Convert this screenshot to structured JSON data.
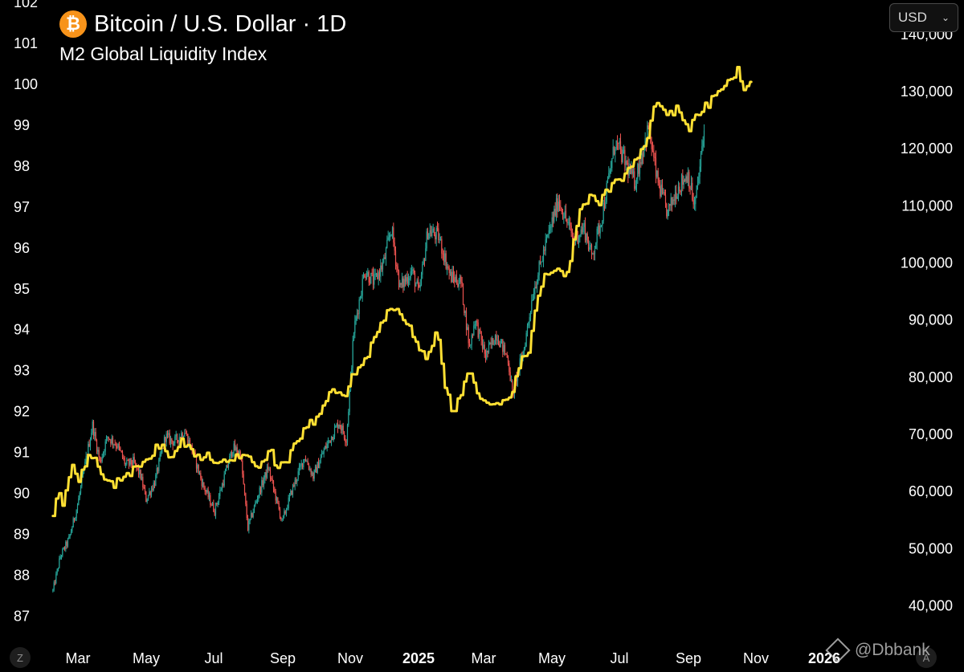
{
  "header": {
    "symbol_icon": "bitcoin-icon",
    "symbol_glyph": "₿",
    "title": "Bitcoin / U.S. Dollar · 1D",
    "subtitle": "M2 Global Liquidity Index"
  },
  "currency_select": {
    "value": "USD",
    "icon": "chevron-down-icon"
  },
  "watermark": {
    "handle": "@Dbbank",
    "icon": "binance-square-icon"
  },
  "badges": {
    "left": "Z",
    "right": "A"
  },
  "colors": {
    "background": "#000000",
    "m2_line": "#ffe033",
    "candle_up": "#26a69a",
    "candle_down": "#ef5350",
    "axis_text": "#ffffff",
    "bitcoin_orange": "#f7931a"
  },
  "chart_data": {
    "type": "line",
    "title": "Bitcoin / U.S. Dollar · 1D",
    "subtitle": "M2 Global Liquidity Index",
    "x_ticks": [
      "Mar",
      "May",
      "Jul",
      "Sep",
      "Nov",
      "2025",
      "Mar",
      "May",
      "Jul",
      "Sep",
      "Nov",
      "2026"
    ],
    "left_axis": {
      "ticks": [
        "102",
        "101",
        "100",
        "99",
        "98",
        "97",
        "96",
        "95",
        "94",
        "93",
        "92",
        "91",
        "90",
        "89",
        "88",
        "87"
      ],
      "ylim": [
        86.5,
        102
      ]
    },
    "right_axis": {
      "ticks": [
        "140,000",
        "130,000",
        "120,000",
        "110,000",
        "100,000",
        "90,000",
        "80,000",
        "70,000",
        "60,000",
        "50,000",
        "40,000"
      ],
      "ylim": [
        36000,
        147000
      ]
    },
    "x_range": [
      "2024-02-01",
      "2026-02-05"
    ],
    "grid": false,
    "legend": "top-left",
    "series": [
      {
        "name": "M2 Global Liquidity Index",
        "axis": "left",
        "kind": "line",
        "points": [
          [
            "2024-02-05",
            89.5
          ],
          [
            "2024-02-10",
            90.1
          ],
          [
            "2024-02-15",
            89.7
          ],
          [
            "2024-02-22",
            90.8
          ],
          [
            "2024-03-01",
            90.3
          ],
          [
            "2024-03-10",
            91.0
          ],
          [
            "2024-03-20",
            90.5
          ],
          [
            "2024-04-01",
            90.2
          ],
          [
            "2024-04-15",
            90.4
          ],
          [
            "2024-04-25",
            90.7
          ],
          [
            "2024-05-05",
            90.9
          ],
          [
            "2024-05-15",
            91.2
          ],
          [
            "2024-05-25",
            90.8
          ],
          [
            "2024-06-05",
            91.3
          ],
          [
            "2024-06-15",
            90.9
          ],
          [
            "2024-06-25",
            90.9
          ],
          [
            "2024-07-05",
            90.8
          ],
          [
            "2024-07-15",
            90.7
          ],
          [
            "2024-07-25",
            90.9
          ],
          [
            "2024-08-05",
            91.0
          ],
          [
            "2024-08-15",
            90.6
          ],
          [
            "2024-08-25",
            91.1
          ],
          [
            "2024-09-01",
            90.6
          ],
          [
            "2024-09-10",
            90.7
          ],
          [
            "2024-09-20",
            91.3
          ],
          [
            "2024-10-01",
            91.7
          ],
          [
            "2024-10-10",
            91.8
          ],
          [
            "2024-10-20",
            92.5
          ],
          [
            "2024-11-01",
            92.3
          ],
          [
            "2024-11-10",
            92.8
          ],
          [
            "2024-11-20",
            93.2
          ],
          [
            "2024-12-01",
            93.7
          ],
          [
            "2024-12-10",
            94.3
          ],
          [
            "2024-12-20",
            94.6
          ],
          [
            "2025-01-01",
            94.1
          ],
          [
            "2025-01-10",
            93.6
          ],
          [
            "2025-01-20",
            93.3
          ],
          [
            "2025-01-28",
            94.0
          ],
          [
            "2025-02-05",
            92.6
          ],
          [
            "2025-02-12",
            92.0
          ],
          [
            "2025-02-20",
            92.4
          ],
          [
            "2025-02-28",
            93.1
          ],
          [
            "2025-03-08",
            92.3
          ],
          [
            "2025-03-15",
            92.1
          ],
          [
            "2025-03-25",
            92.1
          ],
          [
            "2025-04-05",
            92.2
          ],
          [
            "2025-04-15",
            93.1
          ],
          [
            "2025-04-25",
            93.5
          ],
          [
            "2025-05-01",
            94.6
          ],
          [
            "2025-05-10",
            95.4
          ],
          [
            "2025-05-20",
            95.5
          ],
          [
            "2025-05-30",
            95.3
          ],
          [
            "2025-06-10",
            96.8
          ],
          [
            "2025-06-20",
            97.2
          ],
          [
            "2025-06-30",
            97.1
          ],
          [
            "2025-07-10",
            97.5
          ],
          [
            "2025-07-20",
            97.7
          ],
          [
            "2025-07-30",
            98.1
          ],
          [
            "2025-08-10",
            98.4
          ],
          [
            "2025-08-20",
            99.6
          ],
          [
            "2025-08-30",
            99.2
          ],
          [
            "2025-09-10",
            99.4
          ],
          [
            "2025-09-20",
            98.8
          ],
          [
            "2025-09-30",
            99.3
          ],
          [
            "2025-10-10",
            99.5
          ],
          [
            "2025-10-20",
            99.9
          ],
          [
            "2025-10-30",
            100.1
          ],
          [
            "2025-11-05",
            100.3
          ],
          [
            "2025-11-12",
            99.8
          ],
          [
            "2025-11-18",
            100.0
          ]
        ]
      },
      {
        "name": "Bitcoin / U.S. Dollar",
        "axis": "right",
        "kind": "candlestick",
        "points": [
          [
            "2024-02-05",
            42500
          ],
          [
            "2024-02-12",
            48500
          ],
          [
            "2024-02-20",
            51500
          ],
          [
            "2024-02-28",
            57500
          ],
          [
            "2024-03-05",
            63500
          ],
          [
            "2024-03-13",
            71500
          ],
          [
            "2024-03-20",
            65000
          ],
          [
            "2024-03-27",
            69500
          ],
          [
            "2024-04-05",
            68000
          ],
          [
            "2024-04-13",
            64500
          ],
          [
            "2024-04-20",
            65000
          ],
          [
            "2024-04-27",
            62500
          ],
          [
            "2024-05-02",
            58500
          ],
          [
            "2024-05-10",
            61500
          ],
          [
            "2024-05-20",
            69500
          ],
          [
            "2024-05-28",
            68500
          ],
          [
            "2024-06-07",
            70500
          ],
          [
            "2024-06-15",
            66500
          ],
          [
            "2024-06-24",
            61000
          ],
          [
            "2024-07-05",
            56500
          ],
          [
            "2024-07-15",
            63000
          ],
          [
            "2024-07-22",
            67500
          ],
          [
            "2024-07-29",
            66500
          ],
          [
            "2024-08-05",
            53500
          ],
          [
            "2024-08-15",
            59500
          ],
          [
            "2024-08-24",
            64000
          ],
          [
            "2024-09-06",
            54500
          ],
          [
            "2024-09-15",
            60000
          ],
          [
            "2024-09-27",
            66000
          ],
          [
            "2024-10-05",
            62500
          ],
          [
            "2024-10-15",
            67000
          ],
          [
            "2024-10-29",
            72000
          ],
          [
            "2024-11-05",
            69000
          ],
          [
            "2024-11-12",
            88000
          ],
          [
            "2024-11-22",
            98500
          ],
          [
            "2024-12-01",
            96500
          ],
          [
            "2024-12-10",
            100000
          ],
          [
            "2024-12-17",
            106000
          ],
          [
            "2024-12-25",
            95500
          ],
          [
            "2025-01-05",
            98500
          ],
          [
            "2025-01-12",
            94500
          ],
          [
            "2025-01-20",
            105500
          ],
          [
            "2025-01-30",
            104500
          ],
          [
            "2025-02-10",
            97500
          ],
          [
            "2025-02-20",
            96500
          ],
          [
            "2025-02-28",
            85000
          ],
          [
            "2025-03-05",
            90000
          ],
          [
            "2025-03-15",
            83500
          ],
          [
            "2025-03-25",
            87500
          ],
          [
            "2025-04-05",
            83000
          ],
          [
            "2025-04-09",
            77000
          ],
          [
            "2025-04-20",
            85000
          ],
          [
            "2025-04-28",
            94500
          ],
          [
            "2025-05-10",
            103000
          ],
          [
            "2025-05-22",
            111000
          ],
          [
            "2025-06-05",
            104000
          ],
          [
            "2025-06-15",
            106000
          ],
          [
            "2025-06-22",
            101000
          ],
          [
            "2025-07-01",
            107500
          ],
          [
            "2025-07-14",
            121000
          ],
          [
            "2025-07-22",
            118000
          ],
          [
            "2025-08-01",
            114000
          ],
          [
            "2025-08-14",
            123500
          ],
          [
            "2025-08-22",
            114500
          ],
          [
            "2025-09-01",
            108500
          ],
          [
            "2025-09-10",
            113000
          ],
          [
            "2025-09-20",
            115500
          ],
          [
            "2025-09-26",
            109500
          ],
          [
            "2025-10-01",
            116500
          ],
          [
            "2025-10-05",
            123000
          ]
        ]
      }
    ]
  }
}
